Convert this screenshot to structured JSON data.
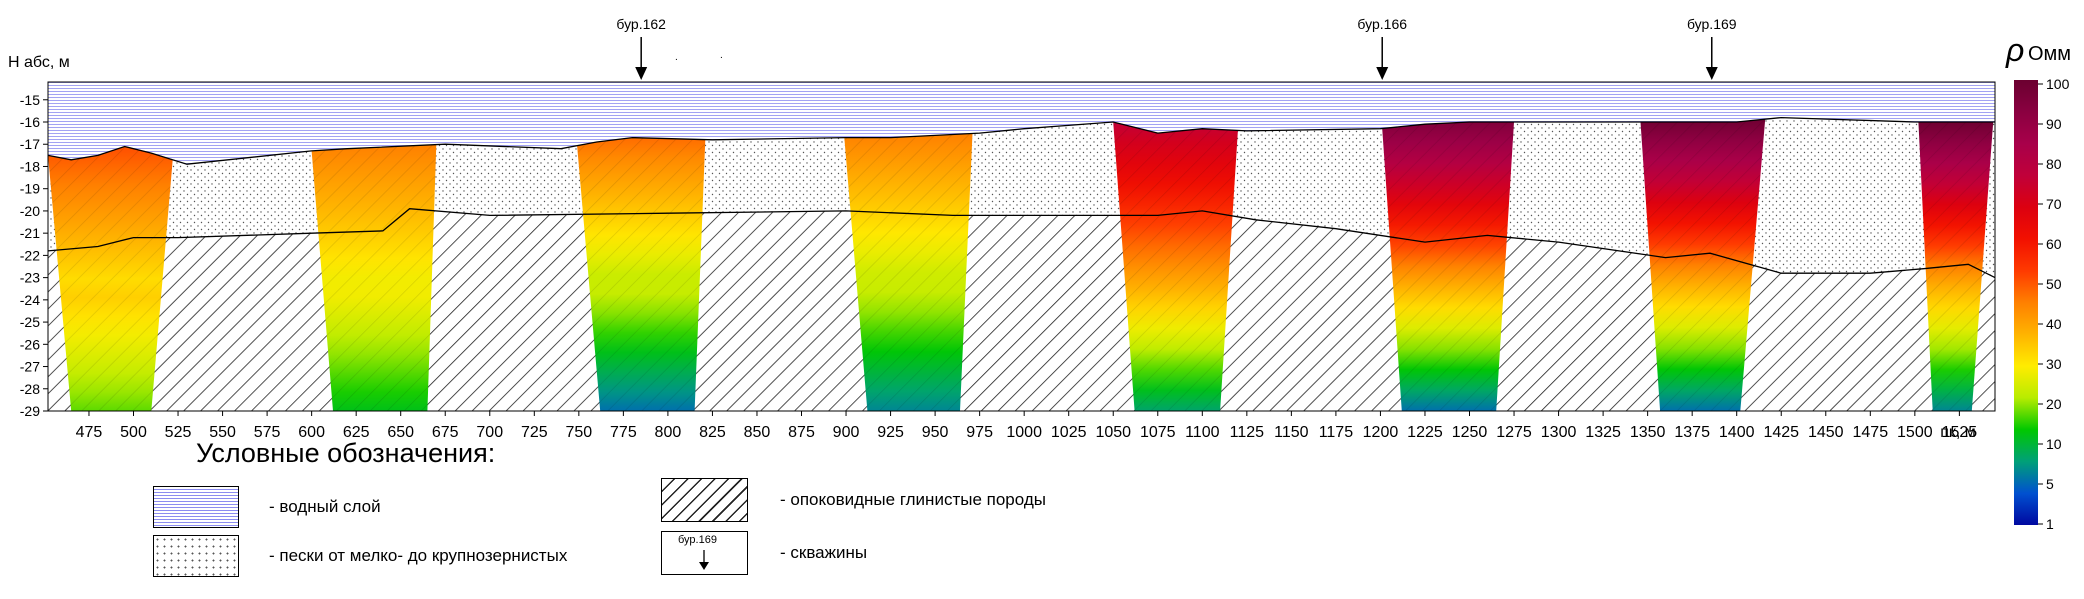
{
  "axis": {
    "y_title": "H абс, м",
    "y_ticks": [
      -15,
      -16,
      -17,
      -18,
      -19,
      -20,
      -21,
      -22,
      -23,
      -24,
      -25,
      -26,
      -27,
      -28,
      -29
    ],
    "x_ticks": [
      475,
      500,
      525,
      550,
      575,
      600,
      625,
      650,
      675,
      700,
      725,
      750,
      775,
      800,
      825,
      850,
      875,
      900,
      925,
      950,
      975,
      1000,
      1025,
      1050,
      1075,
      1100,
      1125,
      1150,
      1175,
      1200,
      1225,
      1250,
      1275,
      1300,
      1325,
      1350,
      1375,
      1400,
      1425,
      1450,
      1475,
      1500,
      1525
    ],
    "x_unit": "пк, м",
    "x_range": [
      452,
      1545
    ],
    "y_range": [
      -29,
      -14.2
    ]
  },
  "boreholes": [
    {
      "label": "бур.162",
      "pk": 785
    },
    {
      "label": "бур.166",
      "pk": 1201
    },
    {
      "label": "бур.169",
      "pk": 1386
    }
  ],
  "colorbar": {
    "title": "Омм",
    "symbol": "ρ",
    "ticks": [
      "100",
      "90",
      "80",
      "70",
      "60",
      "50",
      "40",
      "30",
      "20",
      "10",
      "5",
      "1"
    ],
    "colors": [
      "#6b0030",
      "#8a0040",
      "#a8004a",
      "#c0003a",
      "#dc0010",
      "#f21000",
      "#ff3a00",
      "#ff8000",
      "#ffb300",
      "#ffec00",
      "#b8ec00",
      "#00c800",
      "#00a078",
      "#0050d0",
      "#0008a0"
    ]
  },
  "colors": {
    "water_line": "#8c8cf0",
    "low": "#0008a0",
    "mid": "#00c000",
    "high_yellow": "#ffe400",
    "high_red": "#ee0000"
  },
  "legend": {
    "title": "Условные обозначения:",
    "water": "- водный слой",
    "sand": "- пески от мелко- до крупнозернистых",
    "clay": "- опоковидные глинистые породы",
    "wells": "- скважины",
    "well_sample": "бур.169"
  },
  "surfaces": {
    "seabed": [
      [
        452,
        -17.5
      ],
      [
        465,
        -17.7
      ],
      [
        480,
        -17.5
      ],
      [
        495,
        -17.1
      ],
      [
        510,
        -17.4
      ],
      [
        530,
        -17.9
      ],
      [
        600,
        -17.3
      ],
      [
        620,
        -17.2
      ],
      [
        675,
        -17.0
      ],
      [
        740,
        -17.2
      ],
      [
        760,
        -16.9
      ],
      [
        780,
        -16.7
      ],
      [
        825,
        -16.8
      ],
      [
        900,
        -16.7
      ],
      [
        925,
        -16.7
      ],
      [
        975,
        -16.5
      ],
      [
        1000,
        -16.3
      ],
      [
        1050,
        -16.0
      ],
      [
        1075,
        -16.5
      ],
      [
        1100,
        -16.3
      ],
      [
        1125,
        -16.4
      ],
      [
        1200,
        -16.3
      ],
      [
        1225,
        -16.1
      ],
      [
        1250,
        -16.0
      ],
      [
        1275,
        -16.0
      ],
      [
        1350,
        -16.0
      ],
      [
        1400,
        -16.0
      ],
      [
        1425,
        -15.8
      ],
      [
        1500,
        -16.0
      ],
      [
        1545,
        -16.0
      ]
    ],
    "clay_top": [
      [
        452,
        -21.8
      ],
      [
        480,
        -21.6
      ],
      [
        500,
        -21.2
      ],
      [
        525,
        -21.2
      ],
      [
        600,
        -21.0
      ],
      [
        640,
        -20.9
      ],
      [
        655,
        -19.9
      ],
      [
        700,
        -20.2
      ],
      [
        800,
        -20.1
      ],
      [
        900,
        -20.0
      ],
      [
        960,
        -20.2
      ],
      [
        1075,
        -20.2
      ],
      [
        1100,
        -20.0
      ],
      [
        1130,
        -20.4
      ],
      [
        1175,
        -20.8
      ],
      [
        1225,
        -21.4
      ],
      [
        1260,
        -21.1
      ],
      [
        1300,
        -21.4
      ],
      [
        1360,
        -22.1
      ],
      [
        1385,
        -21.9
      ],
      [
        1425,
        -22.8
      ],
      [
        1475,
        -22.8
      ],
      [
        1505,
        -22.6
      ],
      [
        1530,
        -22.4
      ],
      [
        1545,
        -23.0
      ]
    ]
  },
  "profiles": [
    {
      "pk": [
        452,
        522,
        510,
        465
      ],
      "base": 0.25,
      "top": 0.55
    },
    {
      "pk": [
        600,
        670,
        665,
        612
      ],
      "base": 0.2,
      "top": 0.5
    },
    {
      "pk": [
        749,
        821,
        815,
        762
      ],
      "base": 0.1,
      "top": 0.52
    },
    {
      "pk": [
        899,
        972,
        964,
        912
      ],
      "base": 0.12,
      "top": 0.5
    },
    {
      "pk": [
        1050,
        1120,
        1110,
        1062
      ],
      "base": 0.15,
      "top": 0.78
    },
    {
      "pk": [
        1201,
        1275,
        1265,
        1212
      ],
      "base": 0.1,
      "top": 0.95
    },
    {
      "pk": [
        1346,
        1417,
        1402,
        1357
      ],
      "base": 0.1,
      "top": 0.99
    },
    {
      "pk": [
        1502,
        1545,
        1532,
        1510
      ],
      "base": 0.12,
      "top": 0.99
    }
  ]
}
